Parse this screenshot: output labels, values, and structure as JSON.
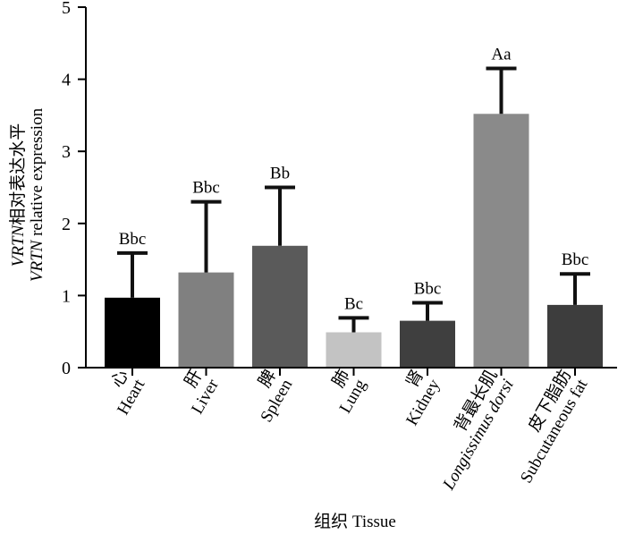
{
  "chart_data": {
    "type": "bar",
    "title": "",
    "ylabel_line1": "VRTN相对表达水平",
    "ylabel_line1_italic": "VRTN",
    "ylabel_line1_rest": "相对表达水平",
    "ylabel_line2": "VRTN relative expression",
    "ylabel_line2_italic": "VRTN",
    "ylabel_line2_rest": " relative expression",
    "xlabel": "组织 Tissue",
    "ylim": [
      0,
      5
    ],
    "yticks": [
      0,
      1,
      2,
      3,
      4,
      5
    ],
    "categories": [
      {
        "cn": "心",
        "en": "Heart",
        "en_italic": false
      },
      {
        "cn": "肝",
        "en": "Liver",
        "en_italic": false
      },
      {
        "cn": "脾",
        "en": "Spleen",
        "en_italic": false
      },
      {
        "cn": "肺",
        "en": "Lung",
        "en_italic": false
      },
      {
        "cn": "肾",
        "en": "Kidney",
        "en_italic": false
      },
      {
        "cn": "背最长肌",
        "en": "Longissimus dorsi",
        "en_italic": true
      },
      {
        "cn": "皮下脂肪",
        "en": "Subcutaneous fat",
        "en_italic": false
      }
    ],
    "values": [
      0.97,
      1.32,
      1.69,
      0.49,
      0.65,
      3.52,
      0.87
    ],
    "errors": [
      0.62,
      0.98,
      0.81,
      0.2,
      0.25,
      0.63,
      0.43
    ],
    "significance": [
      "Bbc",
      "Bbc",
      "Bb",
      "Bc",
      "Bbc",
      "Aa",
      "Bbc"
    ],
    "colors": [
      "#000000",
      "#808080",
      "#5a5a5a",
      "#c3c3c3",
      "#3f3f3f",
      "#8a8a8a",
      "#3d3d3d"
    ]
  }
}
